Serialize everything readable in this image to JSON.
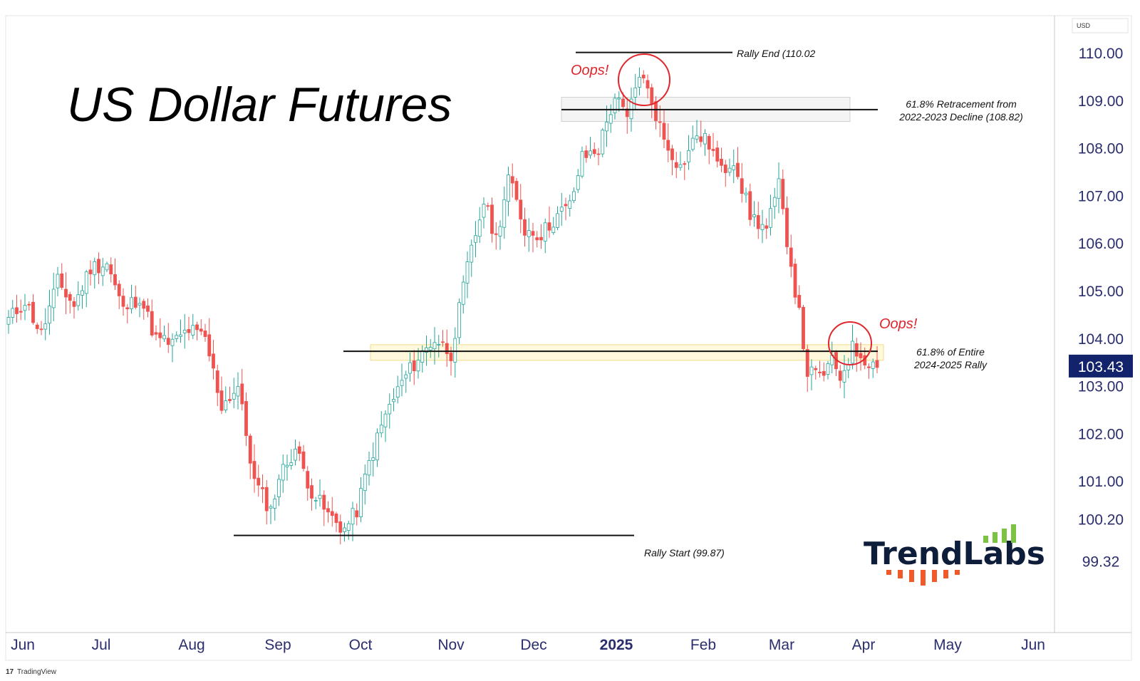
{
  "chart_data": {
    "type": "candlestick",
    "title": "US Dollar Futures",
    "currency": "USD",
    "x_labels": [
      "Jun",
      "Jul",
      "Aug",
      "Sep",
      "Oct",
      "Nov",
      "Dec",
      "2025",
      "Feb",
      "Mar",
      "Apr",
      "May",
      "Jun"
    ],
    "y_labels": [
      "110.00",
      "109.00",
      "108.00",
      "107.00",
      "106.00",
      "105.00",
      "104.00",
      "103.00",
      "102.00",
      "101.00",
      "100.20",
      "99.32"
    ],
    "ylim": [
      98.4,
      110.9
    ],
    "last_price": "103.43",
    "waypoints": [
      [
        0,
        104.4
      ],
      [
        4,
        104.8
      ],
      [
        8,
        104.1
      ],
      [
        12,
        105.2
      ],
      [
        16,
        104.7
      ],
      [
        20,
        105.5
      ],
      [
        24,
        105.6
      ],
      [
        28,
        104.6
      ],
      [
        32,
        104.9
      ],
      [
        36,
        104.0
      ],
      [
        40,
        103.9
      ],
      [
        44,
        104.2
      ],
      [
        48,
        104.0
      ],
      [
        52,
        102.6
      ],
      [
        56,
        103.0
      ],
      [
        60,
        101.0
      ],
      [
        64,
        100.4
      ],
      [
        66,
        101.1
      ],
      [
        70,
        101.7
      ],
      [
        74,
        100.8
      ],
      [
        78,
        100.3
      ],
      [
        82,
        100.0
      ],
      [
        85,
        100.4
      ],
      [
        88,
        101.4
      ],
      [
        92,
        102.4
      ],
      [
        96,
        103.1
      ],
      [
        100,
        103.6
      ],
      [
        104,
        104.0
      ],
      [
        108,
        103.7
      ],
      [
        112,
        105.5
      ],
      [
        116,
        106.9
      ],
      [
        119,
        106.1
      ],
      [
        122,
        107.4
      ],
      [
        126,
        106.3
      ],
      [
        130,
        106.2
      ],
      [
        134,
        106.6
      ],
      [
        137,
        106.8
      ],
      [
        140,
        107.8
      ],
      [
        144,
        108.0
      ],
      [
        148,
        109.1
      ],
      [
        151,
        108.6
      ],
      [
        154,
        109.6
      ],
      [
        157,
        109.0
      ],
      [
        160,
        108.2
      ],
      [
        164,
        107.6
      ],
      [
        168,
        108.3
      ],
      [
        171,
        108.1
      ],
      [
        174,
        107.5
      ],
      [
        177,
        107.8
      ],
      [
        181,
        106.6
      ],
      [
        185,
        106.3
      ],
      [
        188,
        107.2
      ],
      [
        190,
        106.1
      ],
      [
        193,
        104.5
      ],
      [
        195,
        103.3
      ],
      [
        198,
        103.2
      ],
      [
        201,
        103.5
      ],
      [
        203,
        103.2
      ],
      [
        206,
        103.8
      ],
      [
        209,
        103.6
      ],
      [
        212,
        103.4
      ]
    ],
    "annotations": {
      "rally_end": "Rally End (110.02",
      "retracement_1": "61.8% Retracement from",
      "retracement_2": "2022-2023 Decline (108.82)",
      "entire_1": "61.8% of Entire",
      "entire_2": "2024-2025 Rally",
      "rally_start": "Rally Start (99.87)",
      "oops_1": "Oops!",
      "oops_2": "Oops!"
    },
    "levels": {
      "rally_end": 110.02,
      "retracement": 108.82,
      "entire_rally": 103.74,
      "rally_start": 99.87
    },
    "colors": {
      "up": "#26a69a",
      "up_body": "#ffffff",
      "down": "#ef5350",
      "axis_text": "#2a2e6e",
      "circle": "#e0262d",
      "price_tag": "#12236b"
    }
  },
  "branding": {
    "logo_text": "TrendLabs",
    "footer": "TradingView"
  }
}
